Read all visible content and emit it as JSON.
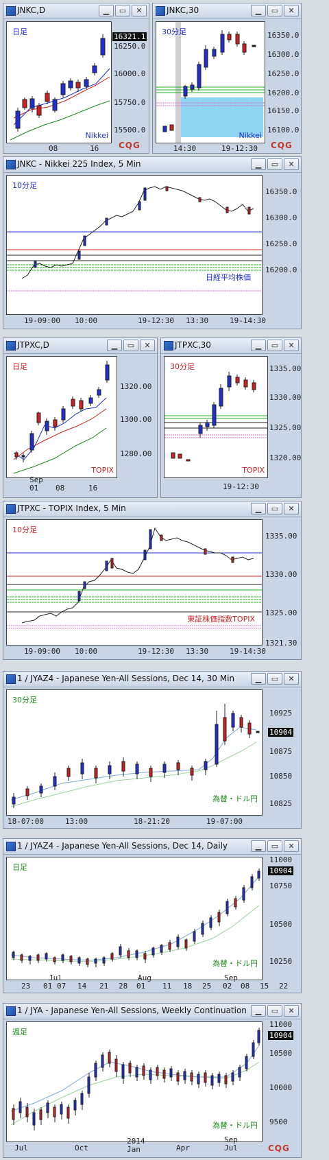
{
  "logo": "CQG",
  "windows": [
    {
      "id": "w1",
      "title": "JNKC,D",
      "period": "日足",
      "period_color": "#1f2fd0",
      "tag": "Nikkei",
      "tag_color": "#1f2fd0",
      "y_labels": [
        "16321.1",
        "16250.0",
        "16000.0",
        "15750.0",
        "15500.0"
      ],
      "x_labels": [
        "08",
        "16"
      ]
    },
    {
      "id": "w2",
      "title": "JNKC,30",
      "period": "30分足",
      "period_color": "#1f2fd0",
      "tag": "Nikkei",
      "tag_color": "#1f2fd0",
      "y_labels": [
        "16350.0",
        "16300.0",
        "16250.0",
        "16200.0",
        "16150.0",
        "16100.0"
      ],
      "x_labels": [
        "14:30",
        "19-12:30"
      ]
    },
    {
      "id": "w3",
      "title": "JNKC - Nikkei 225 Index, 5 Min",
      "period": "10分足",
      "period_color": "#1f2fd0",
      "tag": "日経平均株価",
      "tag_color": "#1f2fd0",
      "y_labels": [
        "16350.0",
        "16300.0",
        "16250.0",
        "16200.0"
      ],
      "x_labels": [
        "19-09:00",
        "10:00",
        "19-12:30",
        "13:30",
        "19-14:30"
      ]
    },
    {
      "id": "w4",
      "title": "JTPXC,D",
      "period": "日足",
      "period_color": "#d01f1f",
      "tag": "TOPIX",
      "tag_color": "#d01f1f",
      "y_labels": [
        "1320.00",
        "1300.00",
        "1280.00"
      ],
      "x_labels": [
        "Sep",
        "01",
        "08",
        "16"
      ]
    },
    {
      "id": "w5",
      "title": "JTPXC,30",
      "period": "30分足",
      "period_color": "#d01f1f",
      "tag": "TOPIX",
      "tag_color": "#d01f1f",
      "y_labels": [
        "1335.00",
        "1330.00",
        "1325.00",
        "1320.00"
      ],
      "x_labels": [
        "19-12:30"
      ]
    },
    {
      "id": "w6",
      "title": "JTPXC - TOPIX Index, 5 Min",
      "period": "10分足",
      "period_color": "#d01f1f",
      "tag": "東証株価指数TOPIX",
      "tag_color": "#d01f1f",
      "y_labels": [
        "1335.00",
        "1330.00",
        "1325.00",
        "1321.30"
      ],
      "x_labels": [
        "19-09:00",
        "10:00",
        "19-12:30",
        "13:30",
        "19-14:30"
      ]
    },
    {
      "id": "w7",
      "title": "1 / JYAZ4 - Japanese Yen-All Sessions, Dec 14, 30 Min",
      "period": "30分足",
      "period_color": "#1a8a1a",
      "tag": "為替・ドル円",
      "tag_color": "#1a8a1a",
      "y_labels": [
        "10925",
        "10904",
        "10875",
        "10850",
        "10825"
      ],
      "x_labels": [
        "18-07:00",
        "13:00",
        "18-21:20",
        "19-07:00"
      ]
    },
    {
      "id": "w8",
      "title": "1 / JYAZ4 - Japanese Yen-All Sessions, Dec 14, Daily",
      "period": "日足",
      "period_color": "#1a8a1a",
      "tag": "為替・ドル円",
      "tag_color": "#1a8a1a",
      "y_labels": [
        "11000",
        "10904",
        "10750",
        "10500",
        "10250"
      ],
      "x_labels": [
        "23",
        "01",
        "07",
        "14",
        "21",
        "28",
        "01",
        "11",
        "18",
        "25",
        "02",
        "08",
        "15",
        "22",
        "Jul",
        "Aug",
        "Sep"
      ]
    },
    {
      "id": "w9",
      "title": "1 / JYA - Japanese Yen-All Sessions, Weekly Continuation",
      "period": "週足",
      "period_color": "#1a8a1a",
      "tag": "為替・ドル円",
      "tag_color": "#1a8a1a",
      "y_labels": [
        "11000",
        "10904",
        "10500",
        "10000",
        "9500"
      ],
      "x_labels": [
        "Jul",
        "Oct",
        "2014",
        "Jan",
        "Apr",
        "Jul",
        "Sep"
      ]
    }
  ],
  "buttons": {
    "minimize": "▁",
    "restore": "▭",
    "close": "✕"
  }
}
